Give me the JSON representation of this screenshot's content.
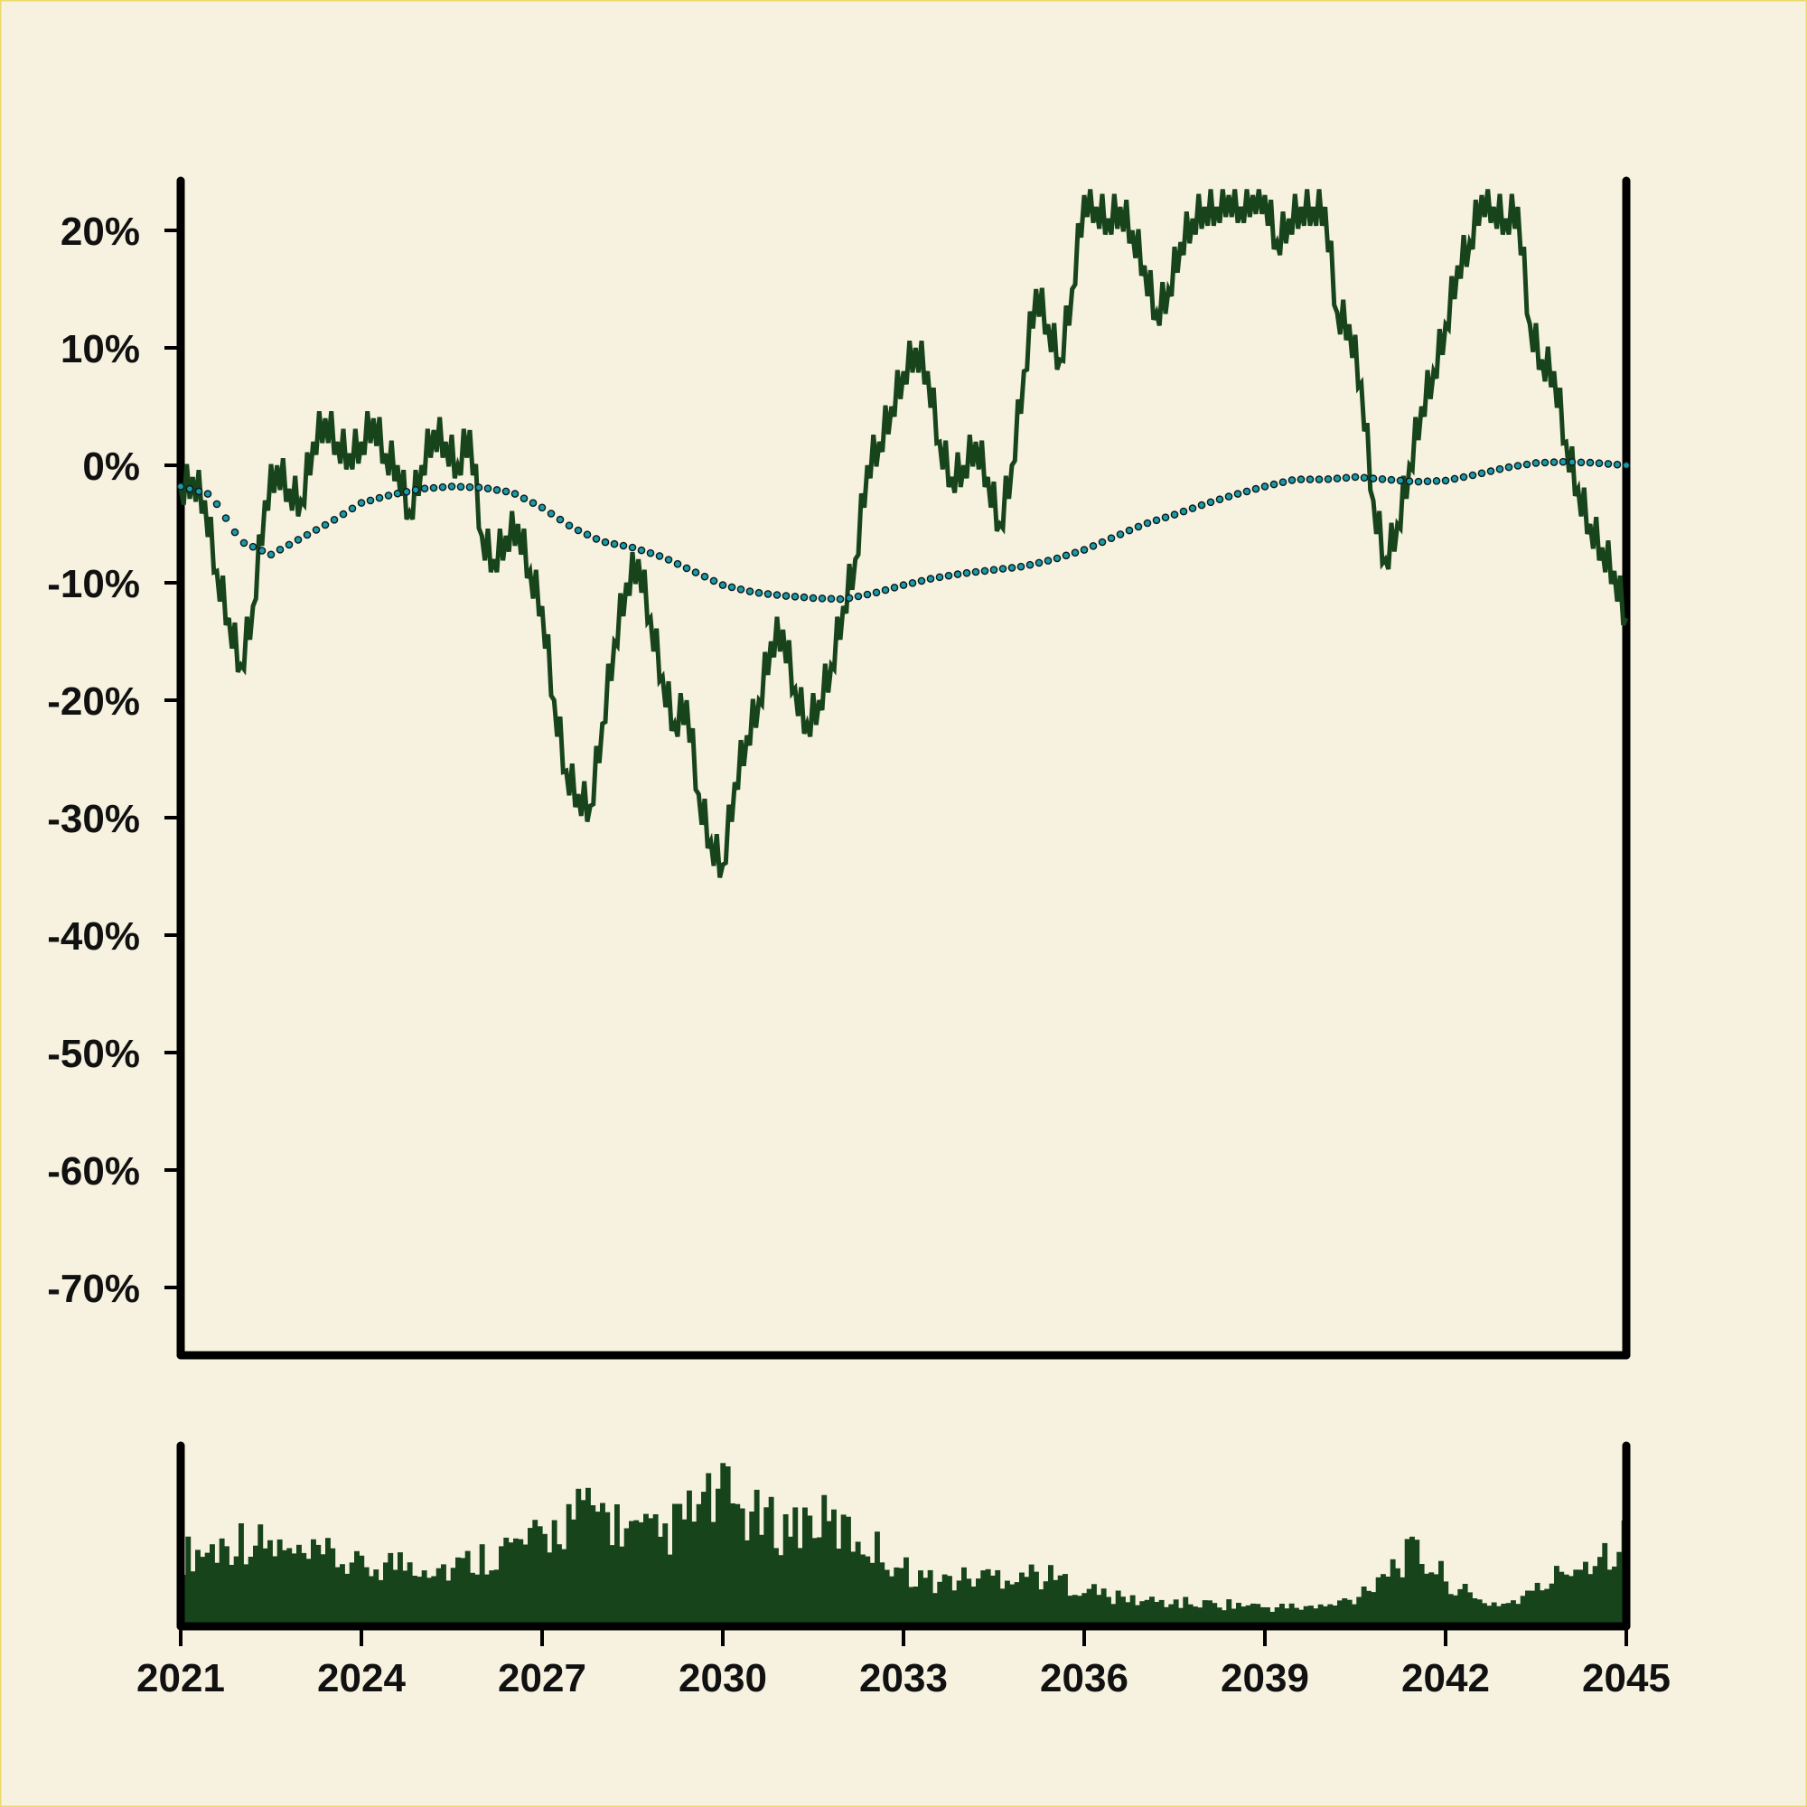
{
  "chart_data": {
    "type": "line",
    "title": "",
    "xlabel": "",
    "ylabel": "",
    "x_range": [
      2021,
      2045
    ],
    "ylim": [
      -75,
      24
    ],
    "y_ticks": [
      20,
      10,
      0,
      -10,
      -20,
      -30,
      -40,
      -50,
      -60,
      -70
    ],
    "y_tick_labels": [
      "20%",
      "10%",
      "0%",
      "-10%",
      "-20%",
      "-30%",
      "-40%",
      "-50%",
      "-60%",
      "-70%"
    ],
    "x_ticks": [
      2021,
      2024,
      2027,
      2030,
      2033,
      2036,
      2039,
      2042,
      2045
    ],
    "x_tick_labels": [
      "2021",
      "2024",
      "2027",
      "2030",
      "2033",
      "2036",
      "2039",
      "2042",
      "2045"
    ],
    "legend": "none",
    "grid": false,
    "colors": {
      "background": "#f7f2e0",
      "line": "#17441a",
      "dots_fill": "#1b9aa8",
      "dots_stroke": "#0a1a1a",
      "volume": "#17441a",
      "axis": "#000000"
    },
    "series": [
      {
        "style": "solid-line",
        "x": [
          2021.0,
          2021.2,
          2021.4,
          2021.6,
          2021.8,
          2022.0,
          2022.2,
          2022.4,
          2022.6,
          2022.8,
          2023.0,
          2023.2,
          2023.4,
          2023.6,
          2023.8,
          2024.0,
          2024.2,
          2024.4,
          2024.6,
          2024.8,
          2025.0,
          2025.2,
          2025.4,
          2025.6,
          2025.8,
          2026.0,
          2026.2,
          2026.4,
          2026.6,
          2026.8,
          2027.0,
          2027.2,
          2027.4,
          2027.6,
          2027.8,
          2028.0,
          2028.2,
          2028.4,
          2028.6,
          2028.8,
          2029.0,
          2029.2,
          2029.4,
          2029.6,
          2029.8,
          2030.0,
          2030.2,
          2030.4,
          2030.6,
          2030.8,
          2031.0,
          2031.2,
          2031.4,
          2031.6,
          2031.8,
          2032.0,
          2032.2,
          2032.4,
          2032.6,
          2032.8,
          2033.0,
          2033.2,
          2033.4,
          2033.6,
          2033.8,
          2034.0,
          2034.2,
          2034.4,
          2034.6,
          2034.8,
          2035.0,
          2035.2,
          2035.4,
          2035.6,
          2035.8,
          2036.0,
          2036.2,
          2036.4,
          2036.6,
          2036.8,
          2037.0,
          2037.2,
          2037.4,
          2037.6,
          2037.8,
          2038.0,
          2038.2,
          2038.4,
          2038.6,
          2038.8,
          2039.0,
          2039.2,
          2039.4,
          2039.6,
          2039.8,
          2040.0,
          2040.2,
          2040.4,
          2040.6,
          2040.8,
          2041.0,
          2041.2,
          2041.4,
          2041.6,
          2041.8,
          2042.0,
          2042.2,
          2042.4,
          2042.6,
          2042.8,
          2043.0,
          2043.2,
          2043.4,
          2043.6,
          2043.8,
          2044.0,
          2044.2,
          2044.4,
          2044.6,
          2044.8,
          2045.0
        ],
        "values": [
          -2,
          -1,
          -3,
          -9,
          -13,
          -17,
          -12,
          -3,
          0,
          -2,
          -3,
          2,
          4,
          2,
          1,
          2,
          4,
          1,
          0,
          -4,
          0,
          3,
          2,
          0,
          3,
          -6,
          -8,
          -6,
          -5,
          -9,
          -12,
          -20,
          -26,
          -28,
          -29,
          -22,
          -15,
          -10,
          -8,
          -13,
          -18,
          -22,
          -20,
          -28,
          -32,
          -34,
          -27,
          -23,
          -20,
          -15,
          -14,
          -19,
          -22,
          -20,
          -17,
          -12,
          -8,
          0,
          2,
          5,
          8,
          10,
          8,
          2,
          -1,
          0,
          2,
          -1,
          -5,
          0,
          8,
          15,
          12,
          9,
          15,
          23,
          22,
          21,
          22,
          20,
          17,
          13,
          15,
          19,
          21,
          22,
          22,
          23,
          22,
          23,
          23,
          19,
          21,
          22,
          22,
          22,
          13,
          12,
          7,
          -3,
          -8,
          -5,
          0,
          5,
          8,
          12,
          17,
          19,
          23,
          22,
          21,
          22,
          12,
          9,
          8,
          2,
          -2,
          -5,
          -7,
          -9,
          -13
        ],
        "shaded_steps": true
      },
      {
        "style": "dotted-line",
        "x": [
          2021.0,
          2021.5,
          2022.0,
          2022.5,
          2023.0,
          2023.5,
          2024.0,
          2024.5,
          2025.0,
          2025.5,
          2026.0,
          2026.5,
          2027.0,
          2027.5,
          2028.0,
          2028.5,
          2029.0,
          2029.5,
          2030.0,
          2030.5,
          2031.0,
          2031.5,
          2032.0,
          2032.5,
          2033.0,
          2033.5,
          2034.0,
          2034.5,
          2035.0,
          2035.5,
          2036.0,
          2036.5,
          2037.0,
          2037.5,
          2038.0,
          2038.5,
          2039.0,
          2039.5,
          2040.0,
          2040.5,
          2041.0,
          2041.5,
          2042.0,
          2042.5,
          2043.0,
          2043.5,
          2044.0,
          2044.5,
          2045.0
        ],
        "values": [
          -1.8,
          -2.5,
          -6.5,
          -7.6,
          -6.2,
          -4.8,
          -3.2,
          -2.5,
          -2.0,
          -1.8,
          -1.9,
          -2.3,
          -3.6,
          -5.3,
          -6.5,
          -7.0,
          -7.8,
          -9.0,
          -10.2,
          -10.8,
          -11.1,
          -11.3,
          -11.4,
          -10.9,
          -10.2,
          -9.6,
          -9.2,
          -8.9,
          -8.6,
          -8.0,
          -7.2,
          -6.1,
          -5.0,
          -4.2,
          -3.3,
          -2.5,
          -1.8,
          -1.2,
          -1.2,
          -1.0,
          -1.2,
          -1.4,
          -1.3,
          -0.8,
          -0.2,
          0.2,
          0.3,
          0.2,
          0.0
        ]
      }
    ],
    "volume_panel": {
      "type": "bar",
      "x": [
        2021.0,
        2021.5,
        2022.0,
        2022.5,
        2023.0,
        2023.5,
        2024.0,
        2024.5,
        2025.0,
        2025.5,
        2026.0,
        2026.5,
        2027.0,
        2027.5,
        2028.0,
        2028.5,
        2029.0,
        2029.5,
        2030.0,
        2030.5,
        2031.0,
        2031.5,
        2032.0,
        2032.5,
        2033.0,
        2033.5,
        2034.0,
        2034.5,
        2035.0,
        2035.5,
        2036.0,
        2036.5,
        2037.0,
        2037.5,
        2038.0,
        2038.5,
        2039.0,
        2039.5,
        2040.0,
        2040.5,
        2041.0,
        2041.5,
        2042.0,
        2042.5,
        2043.0,
        2043.5,
        2044.0,
        2044.5,
        2045.0
      ],
      "values": [
        0.45,
        0.48,
        0.55,
        0.5,
        0.42,
        0.44,
        0.36,
        0.4,
        0.4,
        0.36,
        0.44,
        0.5,
        0.54,
        0.7,
        0.72,
        0.58,
        0.56,
        0.72,
        0.82,
        0.68,
        0.62,
        0.68,
        0.6,
        0.5,
        0.36,
        0.28,
        0.3,
        0.32,
        0.34,
        0.3,
        0.24,
        0.18,
        0.16,
        0.15,
        0.14,
        0.14,
        0.12,
        0.12,
        0.12,
        0.18,
        0.36,
        0.46,
        0.3,
        0.16,
        0.14,
        0.22,
        0.36,
        0.44,
        0.56
      ]
    }
  }
}
